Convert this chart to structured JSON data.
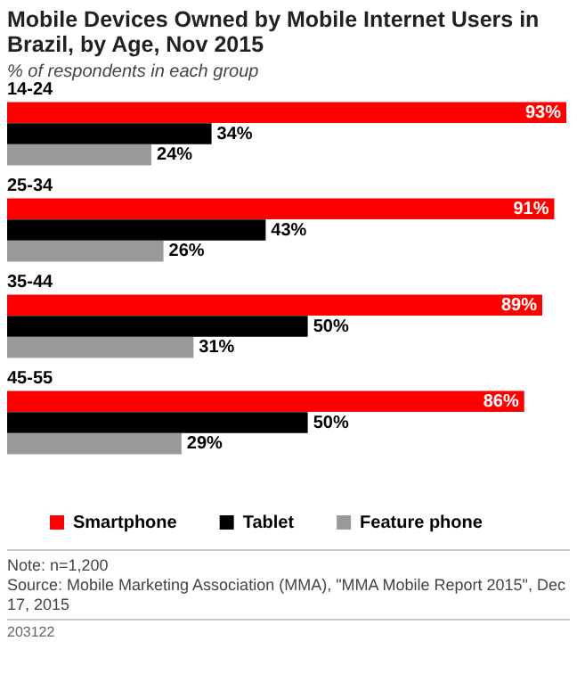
{
  "chart_data": {
    "type": "bar",
    "orientation": "horizontal",
    "title": "Mobile Devices Owned by Mobile Internet Users in Brazil, by Age, Nov 2015",
    "subtitle": "% of respondents in each group",
    "categories": [
      "14-24",
      "25-34",
      "35-44",
      "45-55"
    ],
    "series": [
      {
        "name": "Smartphone",
        "color": "#ff0000",
        "values": [
          93,
          91,
          89,
          86
        ],
        "value_labels": [
          "93%",
          "91%",
          "89%",
          "86%"
        ]
      },
      {
        "name": "Tablet",
        "color": "#000000",
        "values": [
          34,
          43,
          50,
          50
        ],
        "value_labels": [
          "34%",
          "43%",
          "50%",
          "50%"
        ]
      },
      {
        "name": "Feature phone",
        "color": "#999999",
        "values": [
          24,
          26,
          31,
          29
        ],
        "value_labels": [
          "24%",
          "26%",
          "31%",
          "29%"
        ]
      }
    ],
    "legend": "bottom",
    "tick_labels": false,
    "annotations": [
      "Note: n=1,200",
      "Source: Mobile Marketing Association (MMA), \"MMA Mobile Report 2015\", Dec 17, 2015",
      "203122"
    ]
  }
}
